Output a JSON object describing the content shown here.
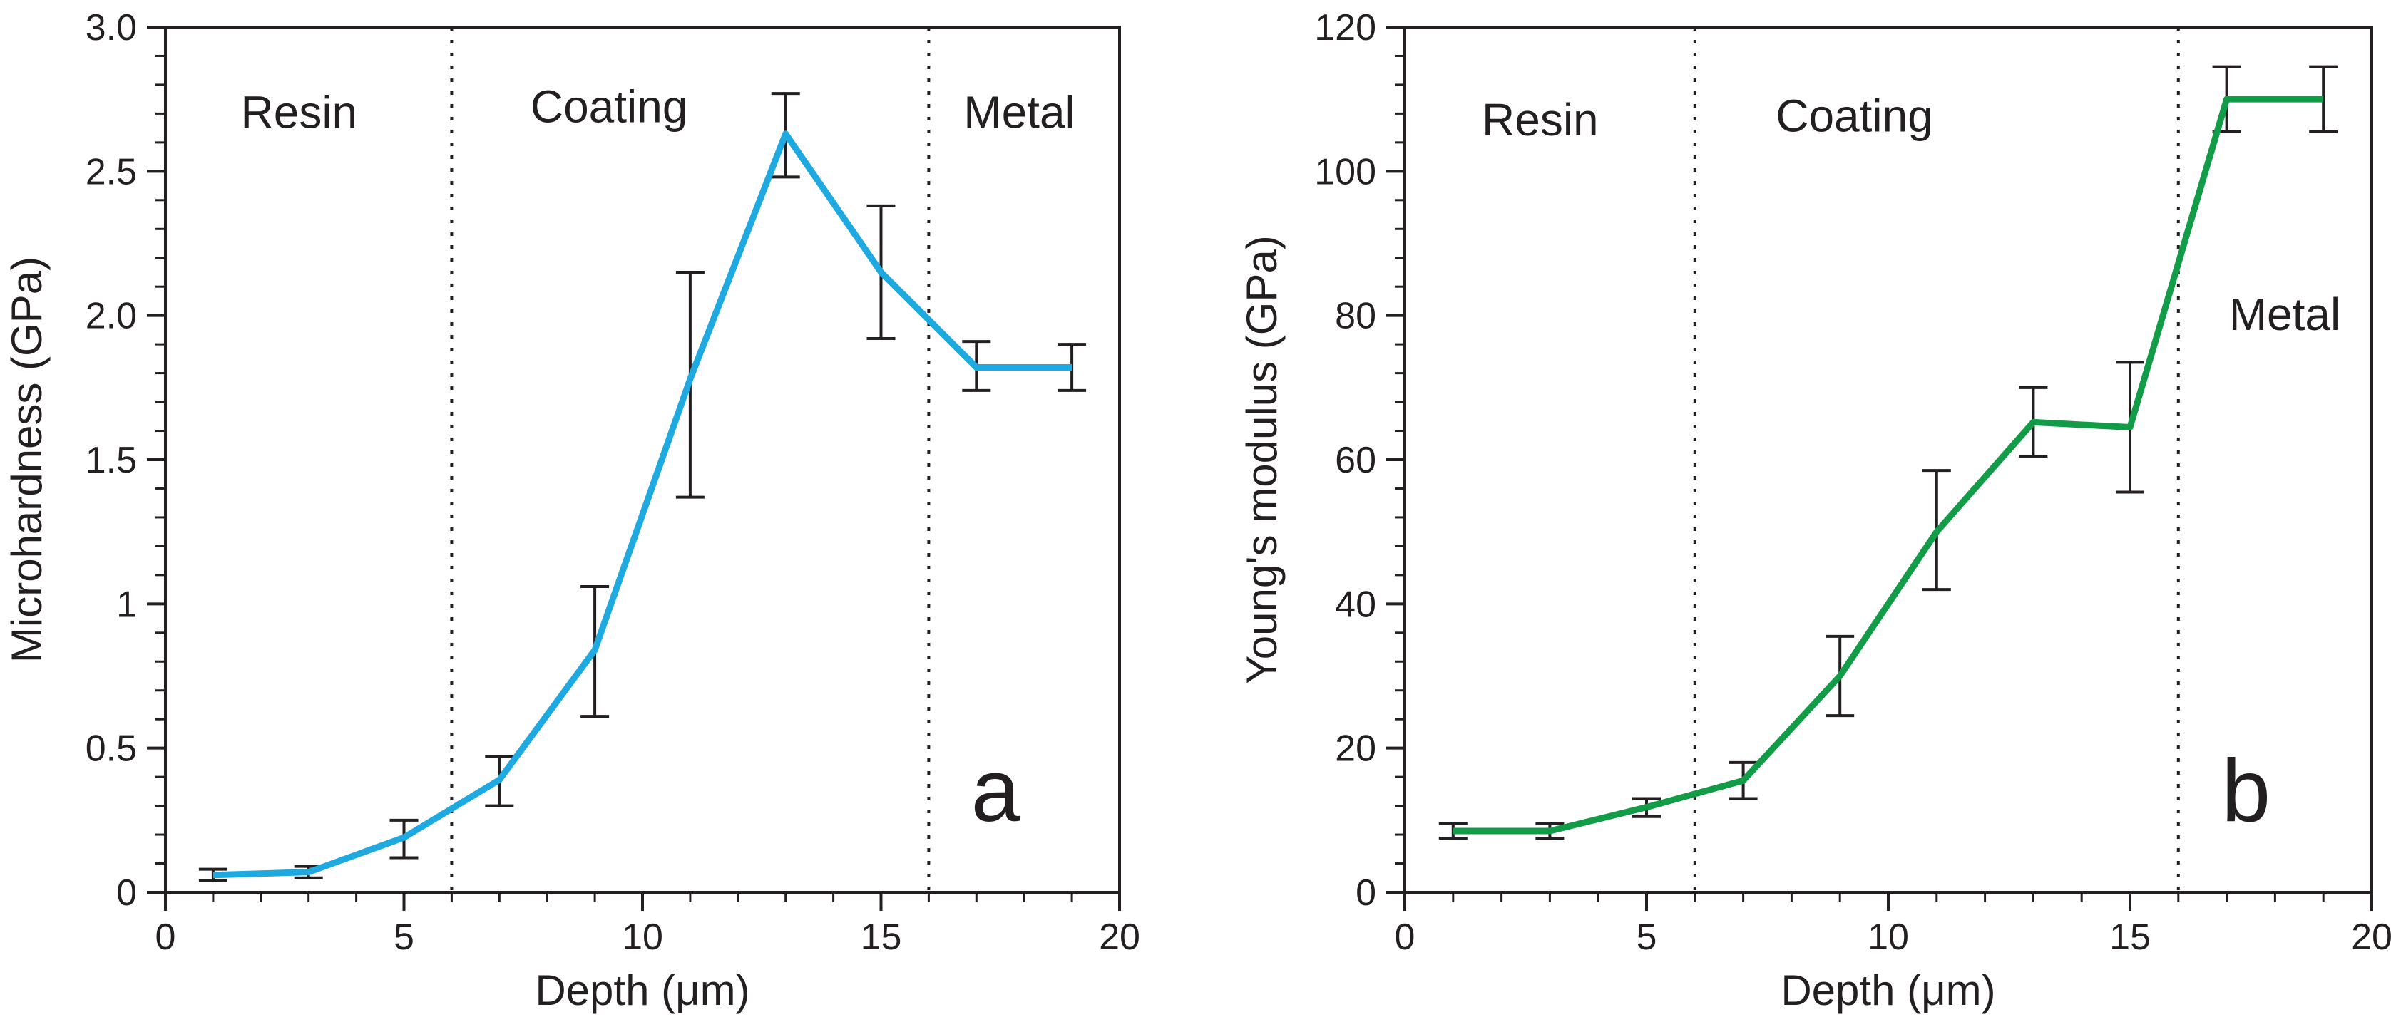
{
  "chart_data": [
    {
      "type": "line",
      "panel_label": "a",
      "xlabel": "Depth (μm)",
      "ylabel": "Microhardness (GPa)",
      "xlim": [
        0,
        20
      ],
      "ylim": [
        0,
        3.0
      ],
      "x_ticks": [
        0,
        5,
        10,
        15,
        20
      ],
      "x_tick_labels": [
        "0",
        "5",
        "10",
        "15",
        "20"
      ],
      "y_ticks": [
        0,
        0.5,
        1.0,
        1.5,
        2.0,
        2.5,
        3.0
      ],
      "y_tick_labels": [
        "0",
        "0.5",
        "1",
        "1.5",
        "2.0",
        "2.5",
        "3.0"
      ],
      "grid": false,
      "line_color": "#1ea9e1",
      "series": [
        {
          "name": "Microhardness",
          "x": [
            1,
            3,
            5,
            7,
            9,
            11,
            13,
            15,
            17,
            19
          ],
          "values": [
            0.06,
            0.07,
            0.19,
            0.39,
            0.84,
            1.78,
            2.63,
            2.15,
            1.82,
            1.82
          ],
          "error_low": [
            0.04,
            0.05,
            0.12,
            0.3,
            0.61,
            1.37,
            2.48,
            1.92,
            1.74,
            1.74
          ],
          "error_high": [
            0.08,
            0.09,
            0.25,
            0.47,
            1.06,
            2.15,
            2.77,
            2.38,
            1.91,
            1.9
          ]
        }
      ],
      "boundaries": [
        6,
        16
      ],
      "regions": [
        {
          "label": "Resin",
          "x": 2.8,
          "y": 2.65
        },
        {
          "label": "Coating",
          "x": 9.3,
          "y": 2.67
        },
        {
          "label": "Metal",
          "x": 17.9,
          "y": 2.65
        }
      ]
    },
    {
      "type": "line",
      "panel_label": "b",
      "xlabel": "Depth (μm)",
      "ylabel": "Young's modulus (GPa)",
      "xlim": [
        0,
        20
      ],
      "ylim": [
        0,
        120
      ],
      "x_ticks": [
        0,
        5,
        10,
        15,
        20
      ],
      "x_tick_labels": [
        "0",
        "5",
        "10",
        "15",
        "20"
      ],
      "y_ticks": [
        0,
        20,
        40,
        60,
        80,
        100,
        120
      ],
      "y_tick_labels": [
        "0",
        "20",
        "40",
        "60",
        "80",
        "100",
        "120"
      ],
      "grid": false,
      "line_color": "#129c47",
      "series": [
        {
          "name": "Young's modulus",
          "x": [
            1,
            3,
            5,
            7,
            9,
            11,
            13,
            15,
            17,
            19
          ],
          "values": [
            8.5,
            8.5,
            11.8,
            15.5,
            30,
            50,
            65.2,
            64.5,
            110,
            110
          ],
          "error_low": [
            7.5,
            7.5,
            10.5,
            13,
            24.5,
            42,
            60.5,
            55.5,
            105.5,
            105.5
          ],
          "error_high": [
            9.5,
            9.5,
            13,
            18,
            35.5,
            58.5,
            70,
            73.5,
            114.5,
            114.5
          ]
        }
      ],
      "boundaries": [
        6,
        16
      ],
      "regions": [
        {
          "label": "Resin",
          "x": 2.8,
          "y": 105
        },
        {
          "label": "Coating",
          "x": 9.3,
          "y": 105.5
        },
        {
          "label": "Metal",
          "x": 18.2,
          "y": 78
        }
      ]
    }
  ]
}
